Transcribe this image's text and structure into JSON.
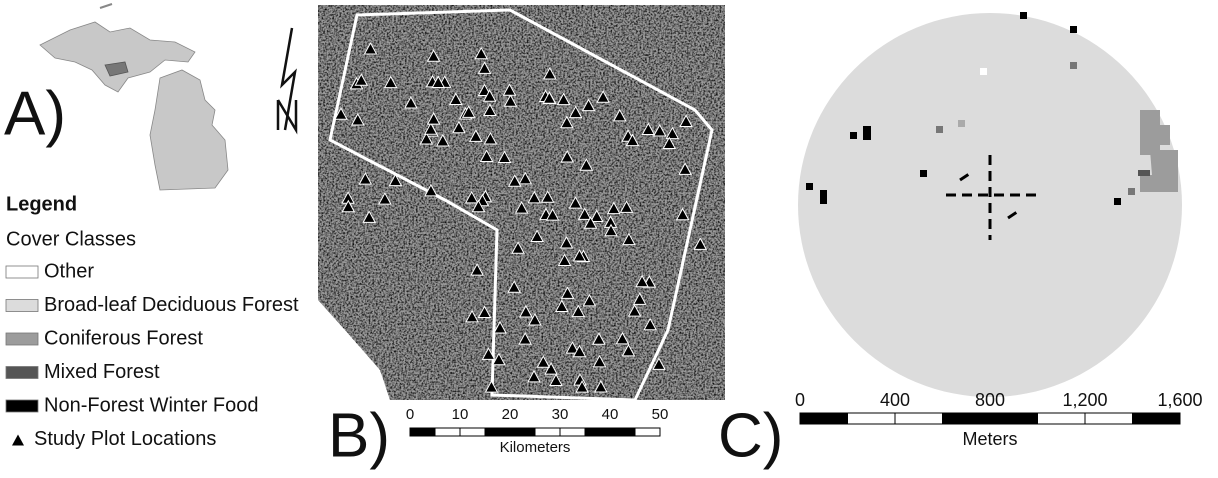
{
  "panel_a": {
    "label": "A)",
    "legend": {
      "title": "Legend",
      "subtitle": "Cover Classes",
      "items": [
        "Other",
        "Broad-leaf Deciduous Forest",
        "Coniferous Forest",
        "Mixed Forest",
        "Non-Forest Winter Food",
        "Study Plot Locations"
      ]
    }
  },
  "panel_b": {
    "label": "B)",
    "scale": {
      "labels": [
        "0",
        "10",
        "20",
        "30",
        "40",
        "50"
      ],
      "unit": "Kilometers"
    }
  },
  "panel_c": {
    "label": "C)",
    "scale": {
      "labels": [
        "0",
        "400",
        "800",
        "1,200",
        "1,600"
      ],
      "unit": "Meters"
    }
  }
}
